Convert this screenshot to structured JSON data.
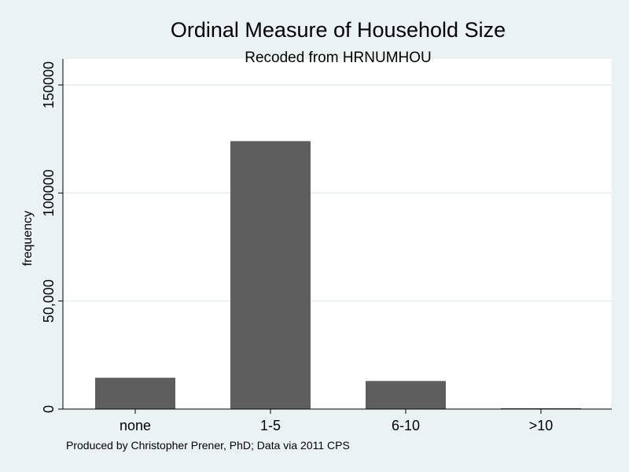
{
  "chart_data": {
    "type": "bar",
    "title": "Ordinal Measure of Household Size",
    "subtitle": "Recoded from HRNUMHOU",
    "ylabel": "frequency",
    "xlabel": "",
    "categories": [
      "none",
      "1-5",
      "6-10",
      ">10"
    ],
    "values": [
      14500,
      124000,
      13000,
      400
    ],
    "ylim": [
      0,
      150000
    ],
    "yticks": [
      {
        "value": 0,
        "label": "0"
      },
      {
        "value": 50000,
        "label": "50,000"
      },
      {
        "value": 100000,
        "label": "100000"
      },
      {
        "value": 150000,
        "label": "150000"
      }
    ],
    "grid": true,
    "note": "Produced by Christopher Prener, PhD; Data via 2011 CPS",
    "colors": {
      "background": "#eaf2f3",
      "plot_background": "#ffffff",
      "bar": "#5e5e5e",
      "gridline": "#e4ecee",
      "axis": "#000000"
    }
  }
}
